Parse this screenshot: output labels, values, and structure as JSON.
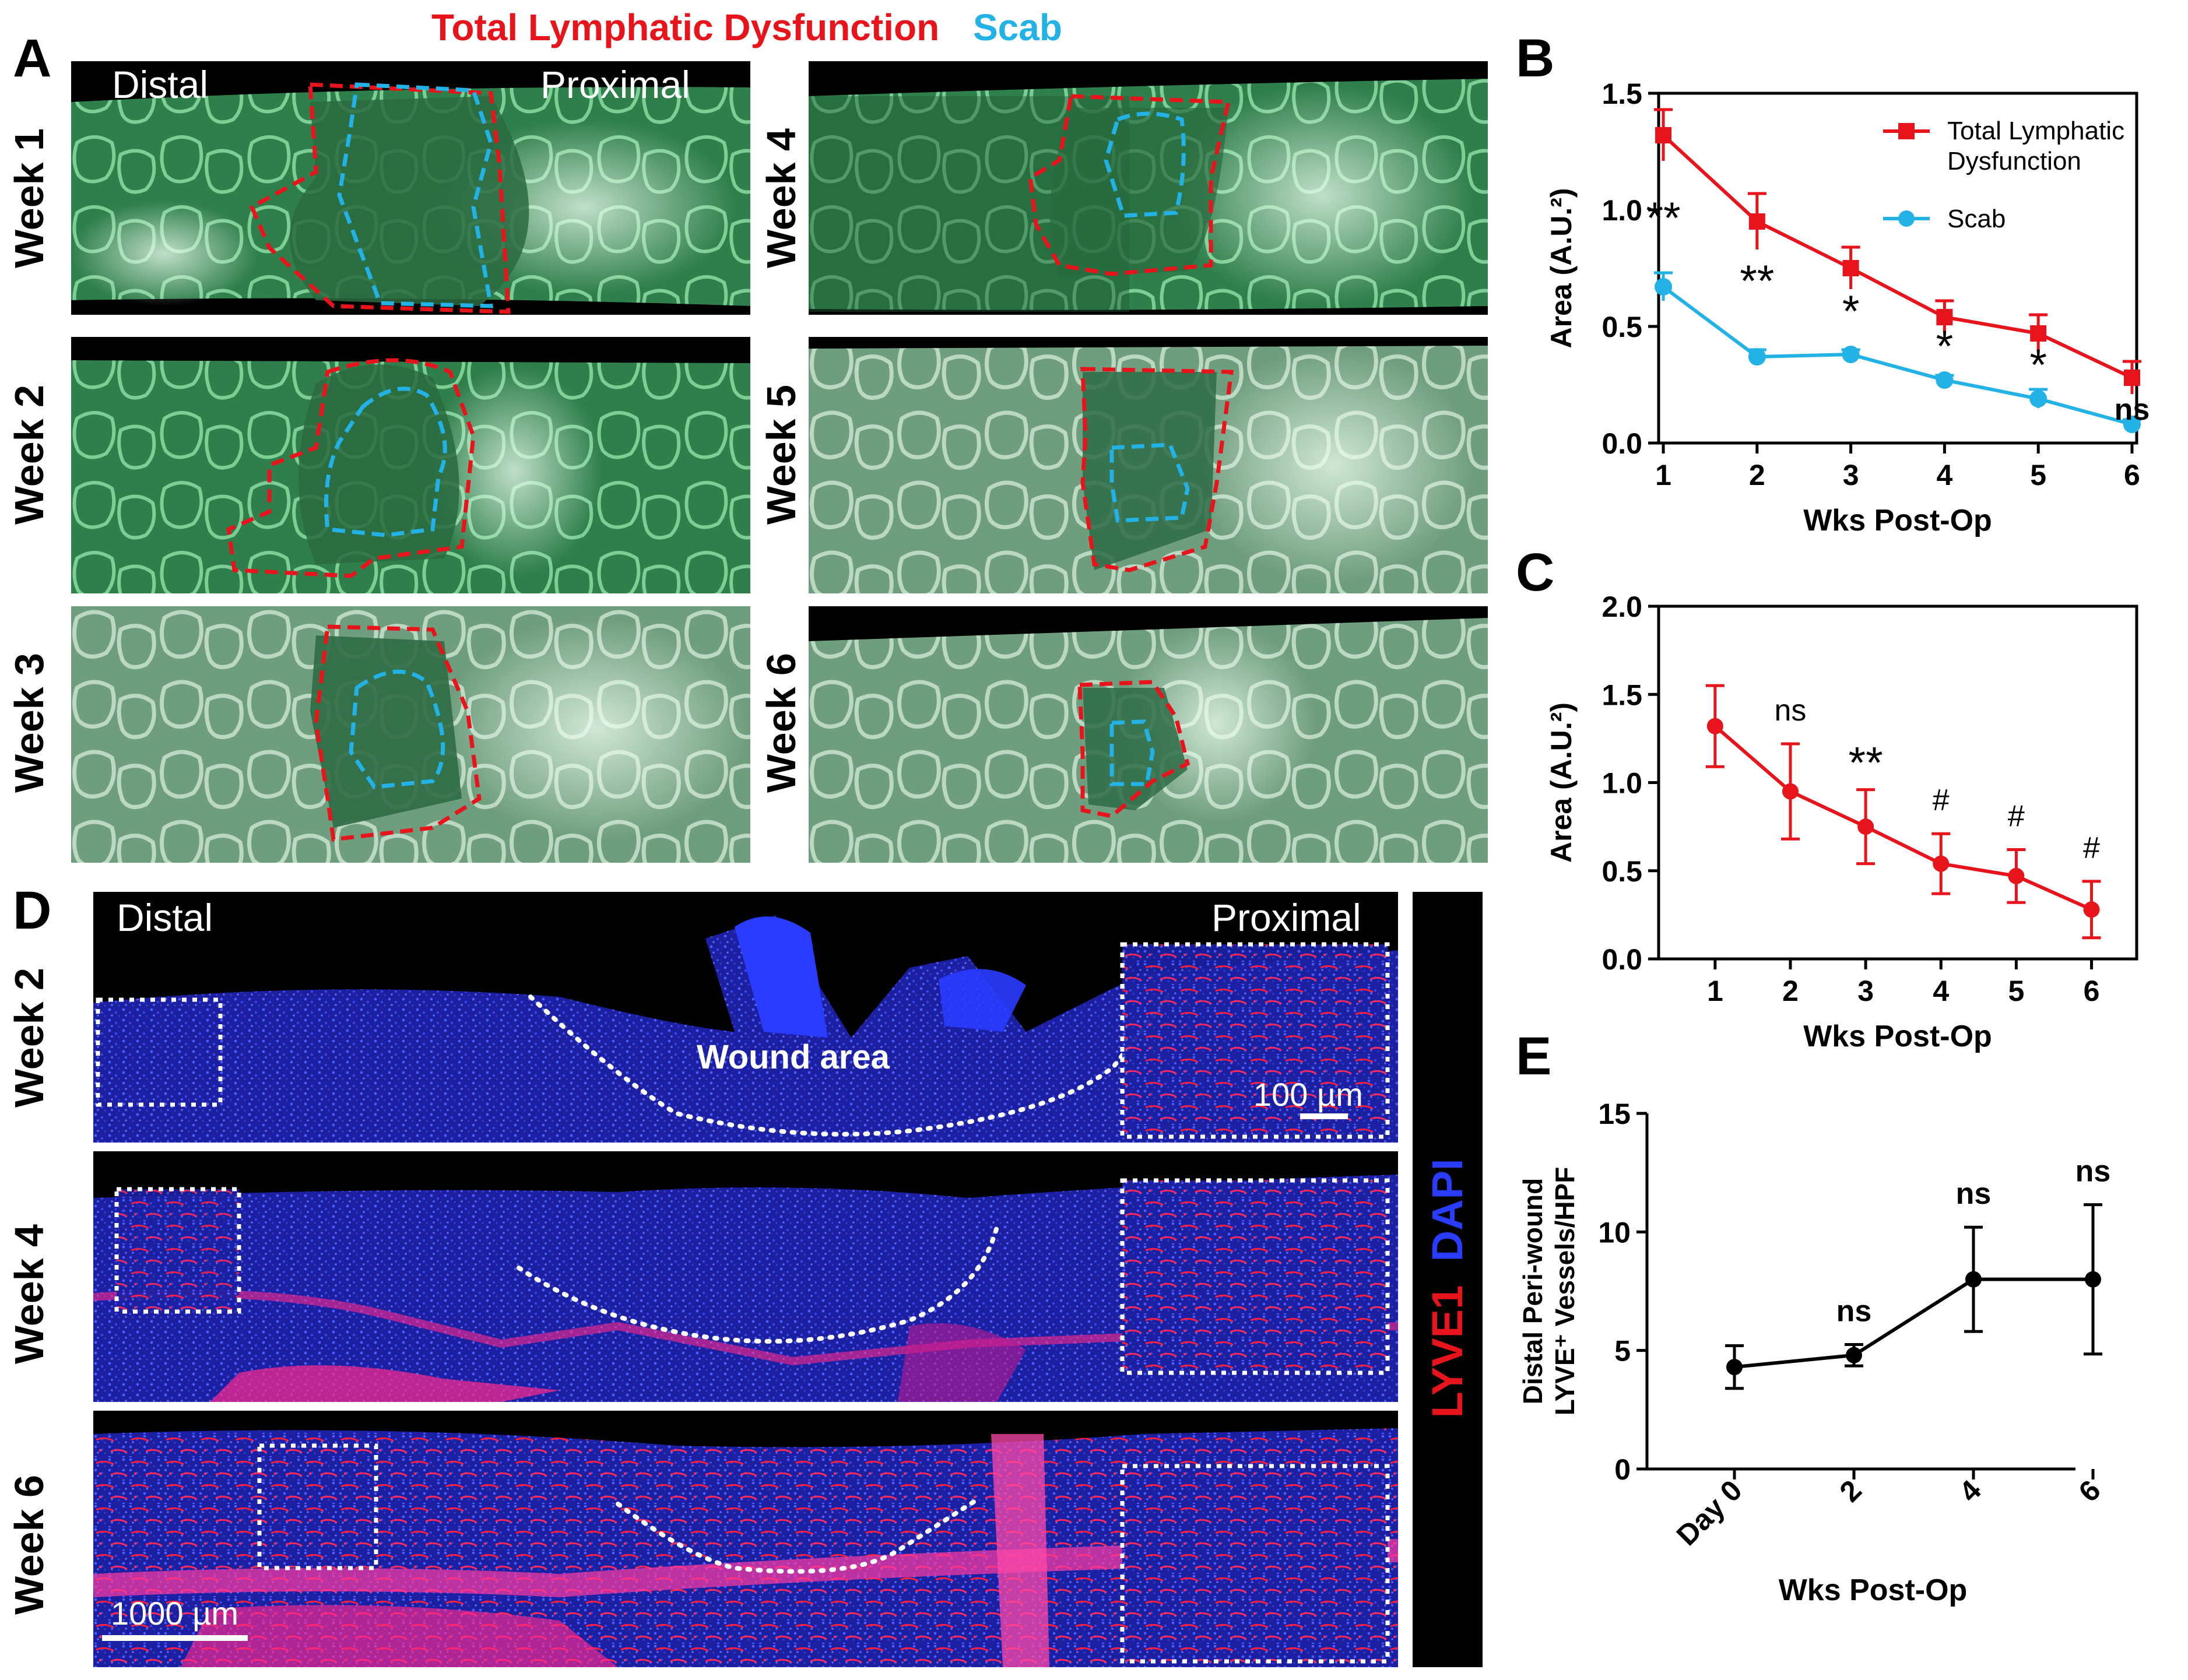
{
  "panel_labels": {
    "a": "A",
    "b": "B",
    "c": "C",
    "d": "D",
    "e": "E"
  },
  "legend_top": {
    "tld": "Total Lymphatic Dysfunction",
    "scab": "Scab"
  },
  "colors": {
    "red": "#e8141c",
    "cyan": "#22b2e6",
    "green_tissue": "#2f8a52",
    "blue_dapi": "#2a3cff",
    "magenta": "#ff2a8c"
  },
  "panel_a": {
    "distal": "Distal",
    "proximal": "Proximal",
    "weeks": [
      "Week 1",
      "Week 2",
      "Week 3",
      "Week 4",
      "Week 5",
      "Week 6"
    ]
  },
  "panel_d": {
    "distal": "Distal",
    "proximal": "Proximal",
    "wound": "Wound area",
    "scale_small": "100 µm",
    "scale_large": "1000 µm",
    "stain_lyve": "LYVE1",
    "stain_dapi": "DAPI",
    "weeks": [
      "Week 2",
      "Week 4",
      "Week 6"
    ]
  },
  "chart_data": [
    {
      "panel": "B",
      "type": "line",
      "title": "",
      "xlabel": "Wks Post-Op",
      "ylabel": "Area (A.U.²)",
      "x": [
        1,
        2,
        3,
        4,
        5,
        6
      ],
      "xlim": [
        0.95,
        6.05
      ],
      "ylim": [
        0,
        1.5
      ],
      "yticks": [
        "0.0",
        "0.5",
        "1.0",
        "1.5"
      ],
      "xticks": [
        "1",
        "2",
        "3",
        "4",
        "5",
        "6"
      ],
      "series": [
        {
          "name": "Total Lymphatic Dysfunction",
          "color": "#e8141c",
          "marker": "square",
          "values": [
            1.32,
            0.95,
            0.75,
            0.54,
            0.47,
            0.28
          ],
          "errors": [
            0.11,
            0.12,
            0.09,
            0.07,
            0.08,
            0.07
          ]
        },
        {
          "name": "Scab",
          "color": "#22b2e6",
          "marker": "circle",
          "values": [
            0.67,
            0.37,
            0.38,
            0.27,
            0.19,
            0.08
          ],
          "errors": [
            0.06,
            0.03,
            0.02,
            0.02,
            0.04,
            0.02
          ]
        }
      ],
      "legend": [
        "Total Lymphatic Dysfunction",
        "Scab"
      ],
      "annotations": [
        "**",
        "**",
        "*",
        "*",
        "*",
        "ns"
      ]
    },
    {
      "panel": "C",
      "type": "line",
      "xlabel": "Wks Post-Op",
      "ylabel": "Area (A.U.²)",
      "x": [
        1,
        2,
        3,
        4,
        5,
        6
      ],
      "xlim": [
        0.25,
        6.6
      ],
      "ylim": [
        0,
        2.0
      ],
      "yticks": [
        "0.0",
        "0.5",
        "1.0",
        "1.5",
        "2.0"
      ],
      "xticks": [
        "1",
        "2",
        "3",
        "4",
        "5",
        "6"
      ],
      "series": [
        {
          "name": "Total Lymphatic Dysfunction",
          "color": "#e8141c",
          "values": [
            1.32,
            0.95,
            0.75,
            0.54,
            0.47,
            0.28
          ],
          "errors": [
            0.23,
            0.27,
            0.21,
            0.17,
            0.15,
            0.16
          ]
        }
      ],
      "annotations": [
        "",
        "ns",
        "**",
        "#",
        "#",
        "#"
      ]
    },
    {
      "panel": "E",
      "type": "line",
      "xlabel": "Wks Post-Op",
      "ylabel_line1": "Distal Peri-wound",
      "ylabel_line2": "LYVE⁺ Vessels/HPF",
      "categories": [
        "Day 0",
        "2",
        "4",
        "6"
      ],
      "ylim": [
        0,
        15
      ],
      "yticks": [
        "0",
        "5",
        "10",
        "15"
      ],
      "series": [
        {
          "name": "Distal Peri-wound LYVE+ Vessels/HPF",
          "color": "#000000",
          "values": [
            4.3,
            4.8,
            8.0,
            8.0
          ],
          "errors": [
            0.9,
            0.45,
            2.2,
            3.15
          ]
        }
      ],
      "annotations": [
        "",
        "ns",
        "ns",
        "ns"
      ]
    }
  ]
}
